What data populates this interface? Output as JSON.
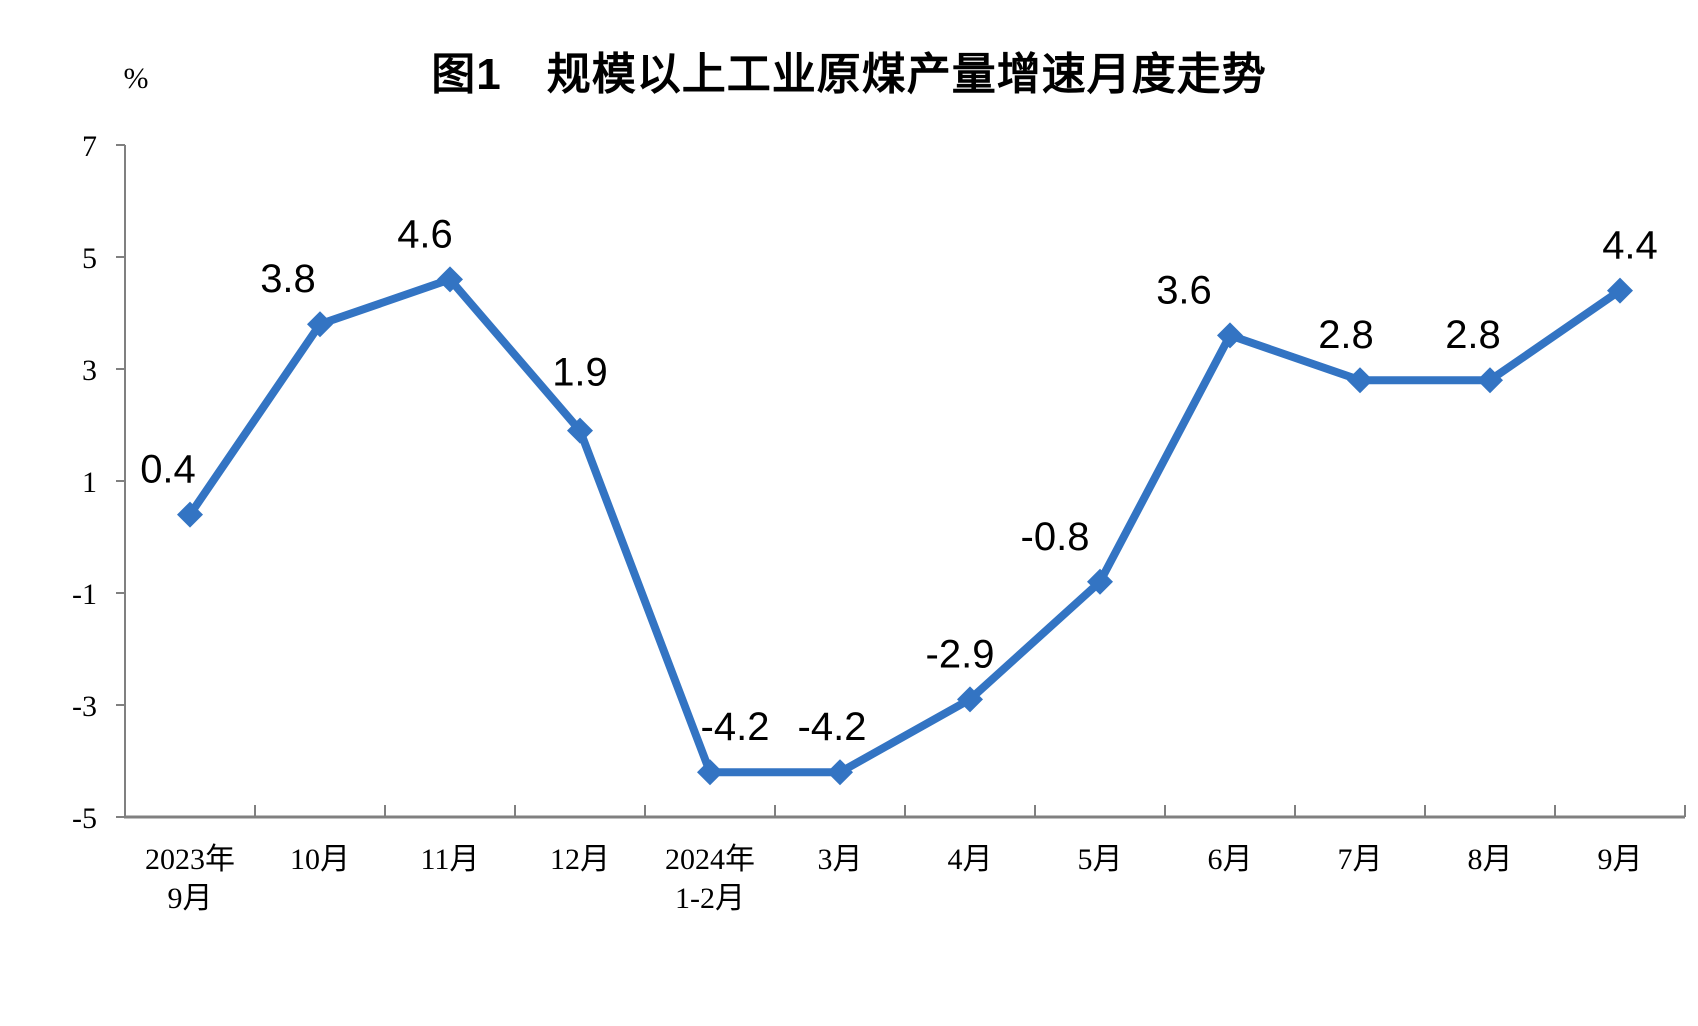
{
  "chart_data": {
    "type": "line",
    "title": "图1　规模以上工业原煤产量增速月度走势",
    "unit_label": "%",
    "categories": [
      [
        "2023年",
        "9月"
      ],
      [
        "10月"
      ],
      [
        "11月"
      ],
      [
        "12月"
      ],
      [
        "2024年",
        "1-2月"
      ],
      [
        "3月"
      ],
      [
        "4月"
      ],
      [
        "5月"
      ],
      [
        "6月"
      ],
      [
        "7月"
      ],
      [
        "8月"
      ],
      [
        "9月"
      ]
    ],
    "values": [
      0.4,
      3.8,
      4.6,
      1.9,
      -4.2,
      -4.2,
      -2.9,
      -0.8,
      3.6,
      2.8,
      2.8,
      4.4
    ],
    "data_labels": [
      "0.4",
      "3.8",
      "4.6",
      "1.9",
      "-4.2",
      "-4.2",
      "-2.9",
      "-0.8",
      "3.6",
      "2.8",
      "2.8",
      "4.4"
    ],
    "y_axis": {
      "min": -5,
      "max": 7,
      "tick_step": 2,
      "tick_labels": [
        "7",
        "5",
        "3",
        "1",
        "-1",
        "-3",
        "-5"
      ]
    },
    "grid": false,
    "legend_position": "none",
    "colors": {
      "line": "#3374C3",
      "marker": "#3374C3",
      "axis": "#808080",
      "text": "#000000"
    }
  }
}
